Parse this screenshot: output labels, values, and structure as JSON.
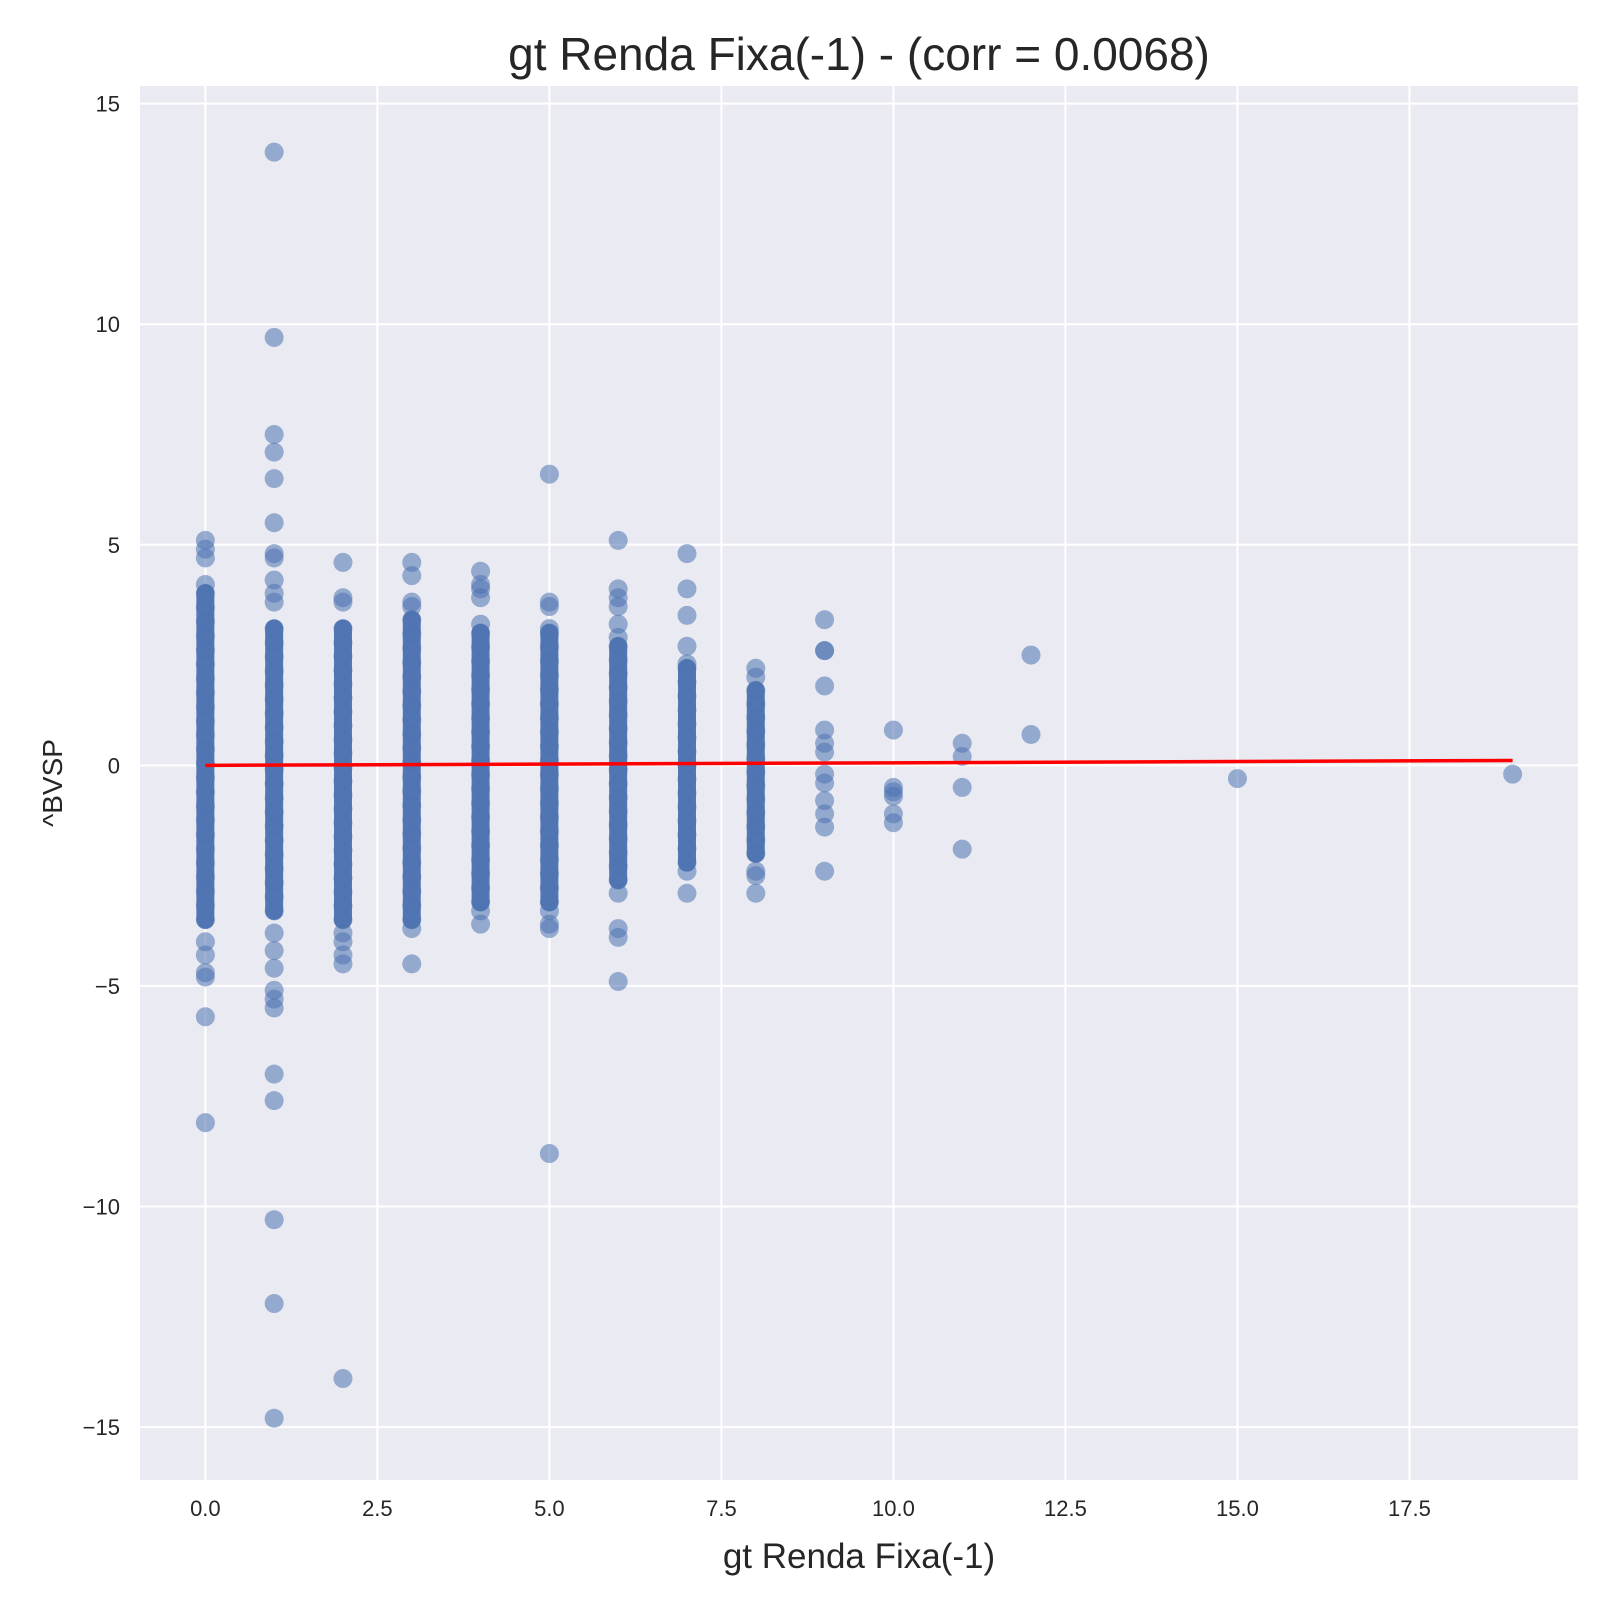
{
  "chart_data": {
    "type": "scatter",
    "title": "gt Renda Fixa(-1) - (corr = 0.0068)",
    "xlabel": "gt Renda Fixa(-1)",
    "ylabel": "^BVSP",
    "xlim": [
      -0.95,
      19.95
    ],
    "ylim": [
      -16.2,
      15.4
    ],
    "xticks": [
      0.0,
      2.5,
      5.0,
      7.5,
      10.0,
      12.5,
      15.0,
      17.5
    ],
    "xtick_labels": [
      "0.0",
      "2.5",
      "5.0",
      "7.5",
      "10.0",
      "12.5",
      "15.0",
      "17.5"
    ],
    "yticks": [
      15,
      10,
      5,
      0,
      -5,
      -10,
      -15
    ],
    "ytick_labels": [
      "15",
      "10",
      "5",
      "0",
      "−5",
      "−10",
      "−15"
    ],
    "grid": true,
    "colors": {
      "background": "#eaeaf2",
      "grid": "#ffffff",
      "points": "#4c72b0",
      "regression_line": "#ff0000"
    },
    "dense_bands": [
      {
        "x": 0,
        "y_min": -3.5,
        "y_max": 3.9
      },
      {
        "x": 1,
        "y_min": -3.3,
        "y_max": 3.1
      },
      {
        "x": 2,
        "y_min": -3.5,
        "y_max": 3.1
      },
      {
        "x": 3,
        "y_min": -3.5,
        "y_max": 3.3
      },
      {
        "x": 4,
        "y_min": -3.1,
        "y_max": 3.0
      },
      {
        "x": 5,
        "y_min": -3.1,
        "y_max": 3.0
      },
      {
        "x": 6,
        "y_min": -2.6,
        "y_max": 2.7
      },
      {
        "x": 7,
        "y_min": -2.2,
        "y_max": 2.2
      },
      {
        "x": 8,
        "y_min": -2.0,
        "y_max": 1.7
      }
    ],
    "points": [
      {
        "x": 0,
        "y": 5.1
      },
      {
        "x": 0,
        "y": 4.9
      },
      {
        "x": 0,
        "y": 4.7
      },
      {
        "x": 0,
        "y": 4.1
      },
      {
        "x": 0,
        "y": -4.0
      },
      {
        "x": 0,
        "y": -4.3
      },
      {
        "x": 0,
        "y": -4.7
      },
      {
        "x": 0,
        "y": -4.8
      },
      {
        "x": 0,
        "y": -5.7
      },
      {
        "x": 0,
        "y": -8.1
      },
      {
        "x": 1,
        "y": 13.9
      },
      {
        "x": 1,
        "y": 9.7
      },
      {
        "x": 1,
        "y": 7.5
      },
      {
        "x": 1,
        "y": 7.1
      },
      {
        "x": 1,
        "y": 6.5
      },
      {
        "x": 1,
        "y": 5.5
      },
      {
        "x": 1,
        "y": 4.8
      },
      {
        "x": 1,
        "y": 4.7
      },
      {
        "x": 1,
        "y": 4.2
      },
      {
        "x": 1,
        "y": 3.9
      },
      {
        "x": 1,
        "y": 3.7
      },
      {
        "x": 1,
        "y": -3.8
      },
      {
        "x": 1,
        "y": -4.2
      },
      {
        "x": 1,
        "y": -4.6
      },
      {
        "x": 1,
        "y": -5.1
      },
      {
        "x": 1,
        "y": -5.3
      },
      {
        "x": 1,
        "y": -5.5
      },
      {
        "x": 1,
        "y": -7.0
      },
      {
        "x": 1,
        "y": -7.6
      },
      {
        "x": 1,
        "y": -10.3
      },
      {
        "x": 1,
        "y": -12.2
      },
      {
        "x": 1,
        "y": -14.8
      },
      {
        "x": 2,
        "y": 4.6
      },
      {
        "x": 2,
        "y": 3.8
      },
      {
        "x": 2,
        "y": 3.7
      },
      {
        "x": 2,
        "y": -3.8
      },
      {
        "x": 2,
        "y": -4.0
      },
      {
        "x": 2,
        "y": -4.3
      },
      {
        "x": 2,
        "y": -4.5
      },
      {
        "x": 2,
        "y": -13.9
      },
      {
        "x": 3,
        "y": 4.6
      },
      {
        "x": 3,
        "y": 4.3
      },
      {
        "x": 3,
        "y": 3.7
      },
      {
        "x": 3,
        "y": 3.6
      },
      {
        "x": 3,
        "y": -3.7
      },
      {
        "x": 3,
        "y": -4.5
      },
      {
        "x": 4,
        "y": 4.4
      },
      {
        "x": 4,
        "y": 4.1
      },
      {
        "x": 4,
        "y": 4.0
      },
      {
        "x": 4,
        "y": 3.8
      },
      {
        "x": 4,
        "y": 3.2
      },
      {
        "x": 4,
        "y": -3.3
      },
      {
        "x": 4,
        "y": -3.6
      },
      {
        "x": 5,
        "y": 6.6
      },
      {
        "x": 5,
        "y": 3.7
      },
      {
        "x": 5,
        "y": 3.6
      },
      {
        "x": 5,
        "y": 3.1
      },
      {
        "x": 5,
        "y": -3.3
      },
      {
        "x": 5,
        "y": -3.6
      },
      {
        "x": 5,
        "y": -3.7
      },
      {
        "x": 5,
        "y": -8.8
      },
      {
        "x": 6,
        "y": 5.1
      },
      {
        "x": 6,
        "y": 4.0
      },
      {
        "x": 6,
        "y": 3.8
      },
      {
        "x": 6,
        "y": 3.6
      },
      {
        "x": 6,
        "y": 3.2
      },
      {
        "x": 6,
        "y": 2.9
      },
      {
        "x": 6,
        "y": -2.9
      },
      {
        "x": 6,
        "y": -3.7
      },
      {
        "x": 6,
        "y": -3.9
      },
      {
        "x": 6,
        "y": -4.9
      },
      {
        "x": 7,
        "y": 4.8
      },
      {
        "x": 7,
        "y": 4.0
      },
      {
        "x": 7,
        "y": 3.4
      },
      {
        "x": 7,
        "y": 2.7
      },
      {
        "x": 7,
        "y": 2.3
      },
      {
        "x": 7,
        "y": -2.4
      },
      {
        "x": 7,
        "y": -2.9
      },
      {
        "x": 8,
        "y": 2.2
      },
      {
        "x": 8,
        "y": 2.0
      },
      {
        "x": 8,
        "y": -2.4
      },
      {
        "x": 8,
        "y": -2.5
      },
      {
        "x": 8,
        "y": -2.9
      },
      {
        "x": 9,
        "y": 3.3
      },
      {
        "x": 9,
        "y": 2.6
      },
      {
        "x": 9,
        "y": 2.6
      },
      {
        "x": 9,
        "y": 1.8
      },
      {
        "x": 9,
        "y": 0.8
      },
      {
        "x": 9,
        "y": 0.5
      },
      {
        "x": 9,
        "y": 0.3
      },
      {
        "x": 9,
        "y": -0.2
      },
      {
        "x": 9,
        "y": -0.4
      },
      {
        "x": 9,
        "y": -0.8
      },
      {
        "x": 9,
        "y": -1.1
      },
      {
        "x": 9,
        "y": -1.4
      },
      {
        "x": 9,
        "y": -2.4
      },
      {
        "x": 10,
        "y": 0.8
      },
      {
        "x": 10,
        "y": -0.5
      },
      {
        "x": 10,
        "y": -0.6
      },
      {
        "x": 10,
        "y": -0.7
      },
      {
        "x": 10,
        "y": -1.1
      },
      {
        "x": 10,
        "y": -1.3
      },
      {
        "x": 11,
        "y": 0.5
      },
      {
        "x": 11,
        "y": 0.2
      },
      {
        "x": 11,
        "y": -0.5
      },
      {
        "x": 11,
        "y": -1.9
      },
      {
        "x": 12,
        "y": 2.5
      },
      {
        "x": 12,
        "y": 0.7
      },
      {
        "x": 15,
        "y": -0.3
      },
      {
        "x": 19,
        "y": -0.2
      }
    ],
    "regression_line": {
      "x": [
        0,
        19
      ],
      "y": [
        0.0,
        0.11
      ]
    }
  }
}
